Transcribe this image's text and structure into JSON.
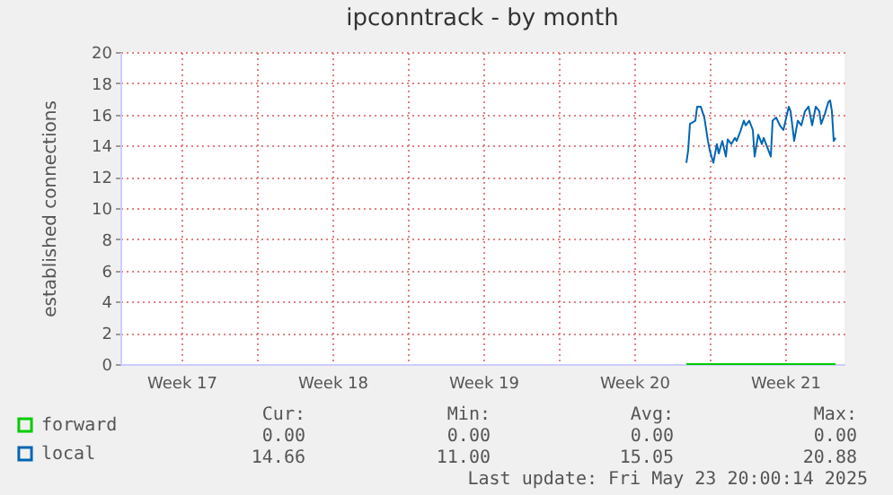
{
  "chart_data": {
    "type": "line",
    "title": "ipconntrack - by month",
    "ylabel": "established connections",
    "xlim": [
      "2025-04-20T16:00",
      "2025-05-24T06:00"
    ],
    "xticks": [
      {
        "value": "2025-04-23T12:00",
        "label": "Week 17"
      },
      {
        "value": "2025-04-27T00:00",
        "label": null
      },
      {
        "value": "2025-04-30T12:00",
        "label": "Week 18"
      },
      {
        "value": "2025-05-04T00:00",
        "label": null
      },
      {
        "value": "2025-05-07T12:00",
        "label": "Week 19"
      },
      {
        "value": "2025-05-11T00:00",
        "label": null
      },
      {
        "value": "2025-05-14T12:00",
        "label": "Week 20"
      },
      {
        "value": "2025-05-18T00:00",
        "label": null
      },
      {
        "value": "2025-05-21T12:00",
        "label": "Week 21"
      }
    ],
    "ylim": [
      0,
      20
    ],
    "yticks": [
      0,
      2,
      4,
      6,
      8,
      10,
      12,
      14,
      16,
      18,
      20
    ],
    "grid": true,
    "legend": "bottom left",
    "series": [
      {
        "name": "forward",
        "color": "#00cc00",
        "x": [
          "2025-05-16T22:00",
          "2025-05-23T20:00"
        ],
        "values": [
          0,
          0
        ]
      },
      {
        "name": "local",
        "color": "#0066b3",
        "x": [
          "2025-05-16T22:00",
          "2025-05-17T00:00",
          "2025-05-17T02:00",
          "2025-05-17T08:00",
          "2025-05-17T10:00",
          "2025-05-17T14:00",
          "2025-05-17T18:00",
          "2025-05-17T22:00",
          "2025-05-18T00:00",
          "2025-05-18T04:00",
          "2025-05-18T08:00",
          "2025-05-18T10:00",
          "2025-05-18T14:00",
          "2025-05-18T18:00",
          "2025-05-18T20:00",
          "2025-05-19T00:00",
          "2025-05-19T04:00",
          "2025-05-19T06:00",
          "2025-05-19T10:00",
          "2025-05-19T14:00",
          "2025-05-19T16:00",
          "2025-05-19T20:00",
          "2025-05-20T00:00",
          "2025-05-20T02:00",
          "2025-05-20T06:00",
          "2025-05-20T10:00",
          "2025-05-20T12:00",
          "2025-05-20T16:00",
          "2025-05-20T20:00",
          "2025-05-20T22:00",
          "2025-05-21T02:00",
          "2025-05-21T06:00",
          "2025-05-21T10:00",
          "2025-05-21T16:00",
          "2025-05-21T18:00",
          "2025-05-21T22:00",
          "2025-05-22T02:00",
          "2025-05-22T06:00",
          "2025-05-22T10:00",
          "2025-05-22T14:00",
          "2025-05-22T18:00",
          "2025-05-22T22:00",
          "2025-05-23T02:00",
          "2025-05-23T04:00",
          "2025-05-23T08:00",
          "2025-05-23T12:00",
          "2025-05-23T14:00",
          "2025-05-23T16:00",
          "2025-05-23T18:00",
          "2025-05-23T20:00"
        ],
        "values": [
          12.9,
          13.7,
          15.4,
          15.6,
          16.5,
          16.5,
          15.8,
          14.3,
          13.7,
          12.9,
          14.1,
          13.5,
          14.3,
          13.3,
          14.4,
          14.1,
          14.5,
          14.3,
          14.9,
          15.6,
          15.3,
          15.6,
          15.0,
          13.3,
          14.7,
          14.1,
          14.5,
          13.9,
          13.3,
          15.6,
          15.8,
          15.3,
          15.0,
          16.5,
          16.2,
          14.3,
          15.6,
          15.3,
          16.2,
          16.5,
          15.3,
          16.5,
          16.2,
          15.4,
          16.0,
          16.8,
          16.9,
          16.2,
          14.3,
          14.5
        ]
      }
    ],
    "annotations": [
      "Cur:",
      "Min:",
      "Avg:",
      "Max:",
      "0.00",
      "0.00",
      "0.00",
      "0.00",
      "14.66",
      "11.00",
      "15.05",
      "20.88",
      "Last update: Fri May 23 20:00:14 2025"
    ]
  }
}
